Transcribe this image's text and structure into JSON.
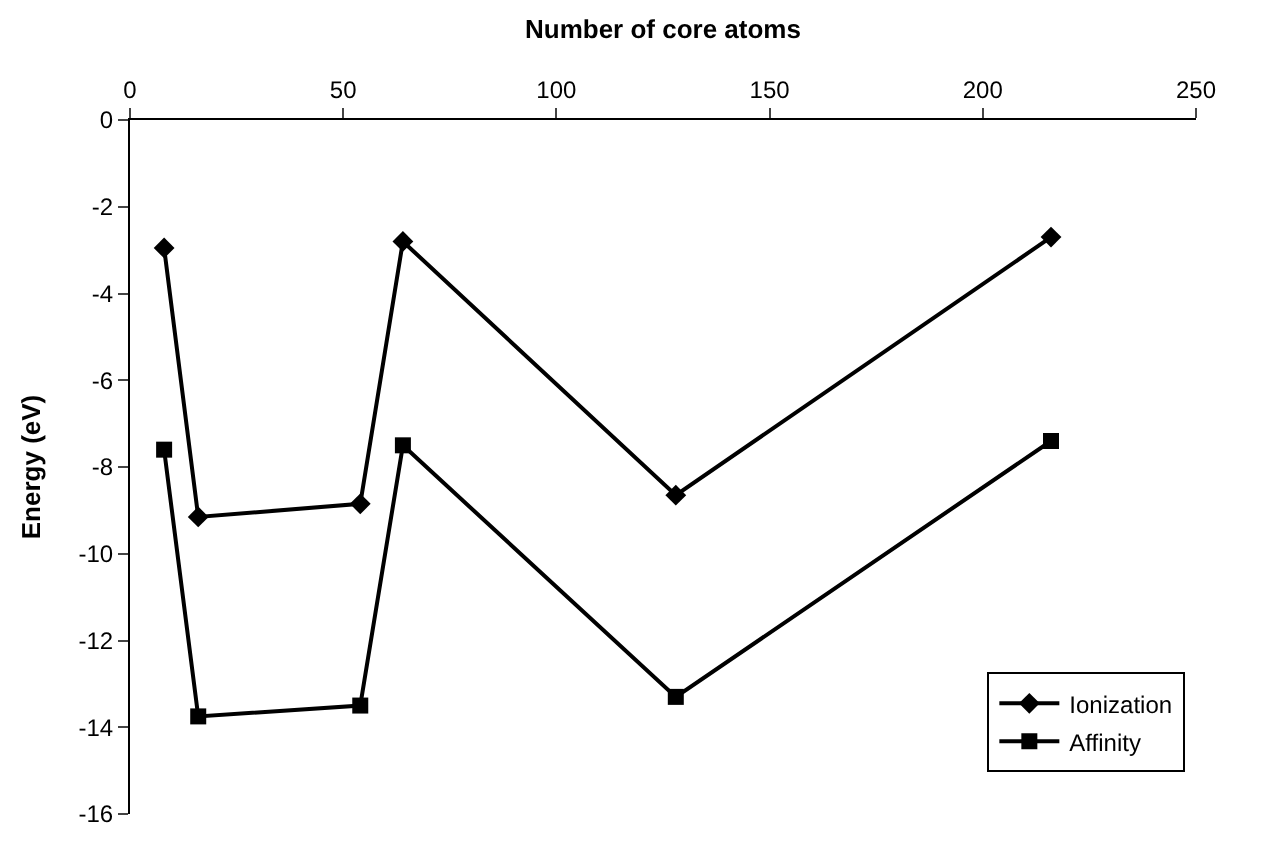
{
  "chart_data": {
    "type": "line",
    "xlabel": "Number of core atoms",
    "ylabel": "Energy (eV)",
    "x": [
      8,
      16,
      54,
      64,
      128,
      216
    ],
    "series": [
      {
        "name": "Ionization",
        "color": "#000000",
        "marker": "diamond",
        "values": [
          -2.95,
          -9.15,
          -8.85,
          -2.8,
          -8.65,
          -2.7
        ]
      },
      {
        "name": "Affinity",
        "color": "#000000",
        "marker": "square",
        "values": [
          -7.6,
          -13.75,
          -13.5,
          -7.5,
          -13.3,
          -7.4
        ]
      }
    ],
    "xlim": [
      0,
      250
    ],
    "xticks": [
      0,
      50,
      100,
      150,
      200,
      250
    ],
    "ylim": [
      -16,
      0
    ],
    "yticks": [
      -16,
      -14,
      -12,
      -10,
      -8,
      -6,
      -4,
      -2,
      0
    ],
    "grid": false,
    "legend": "bottom right",
    "line_style": "solid"
  }
}
